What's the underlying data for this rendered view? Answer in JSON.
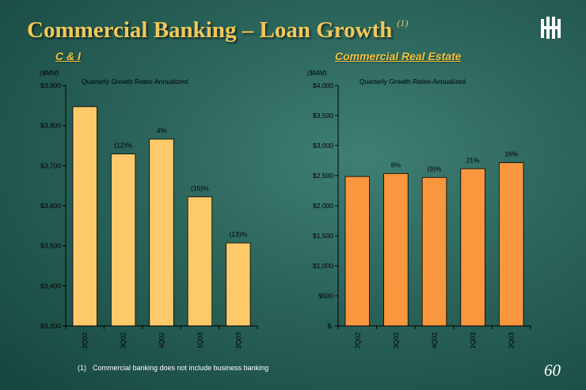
{
  "title": "Commercial Banking – Loan Growth",
  "title_footnote_marker": "(1)",
  "footnote": {
    "marker": "(1)",
    "text": "Commercial banking does not include business banking"
  },
  "page_number": "60",
  "colors": {
    "ci_bar": "#fec96a",
    "cre_bar": "#f9963e",
    "title": "#f2c85a",
    "subtitle": "#f5c33f"
  },
  "chart_data": [
    {
      "type": "bar",
      "title": "C & I",
      "unit_label": "($MM)",
      "annotation": "Quarterly Growth Rates-Annualized",
      "categories": [
        "2Q02",
        "3Q02",
        "4Q02",
        "1Q03",
        "2Q03"
      ],
      "values": [
        3847,
        3729,
        3766,
        3622,
        3507
      ],
      "growth_labels": [
        "",
        "(12)%",
        "4%",
        "(15)%",
        "(13)%"
      ],
      "ylim": [
        3300,
        3900
      ],
      "yticks": [
        3300,
        3400,
        3500,
        3600,
        3700,
        3800,
        3900
      ],
      "ytick_labels": [
        "$3,300",
        "$3,400",
        "$3,500",
        "$3,600",
        "$3,700",
        "$3,800",
        "$3,900"
      ],
      "grid": false
    },
    {
      "type": "bar",
      "title": "Commercial Real Estate",
      "unit_label": "($MM)",
      "annotation": "Quarterly Growth Rates-Annualized",
      "categories": [
        "2Q02",
        "3Q02",
        "4Q02",
        "1Q03",
        "2Q03"
      ],
      "values": [
        2485,
        2535,
        2470,
        2615,
        2715
      ],
      "growth_labels": [
        "",
        "8%",
        "(9)%",
        "21%",
        "16%"
      ],
      "ylim": [
        0,
        4000
      ],
      "yticks": [
        0,
        500,
        1000,
        1500,
        2000,
        2500,
        3000,
        3500,
        4000
      ],
      "ytick_labels": [
        "$-",
        "$500",
        "$1,000",
        "$1,500",
        "$2,000",
        "$2,500",
        "$3,000",
        "$3,500",
        "$4,000"
      ],
      "grid": false
    }
  ]
}
